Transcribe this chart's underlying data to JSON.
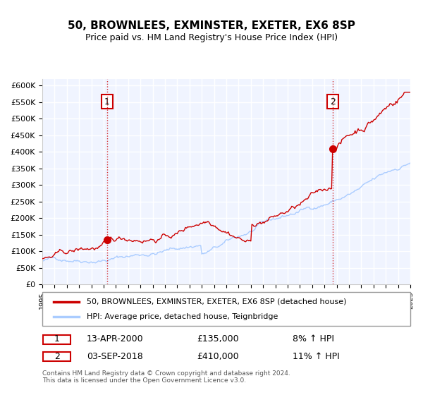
{
  "title": "50, BROWNLEES, EXMINSTER, EXETER, EX6 8SP",
  "subtitle": "Price paid vs. HM Land Registry's House Price Index (HPI)",
  "property_label": "50, BROWNLEES, EXMINSTER, EXETER, EX6 8SP (detached house)",
  "hpi_label": "HPI: Average price, detached house, Teignbridge",
  "property_color": "#cc0000",
  "hpi_color": "#aaccff",
  "marker1_date": 2000.28,
  "marker1_value": 135000,
  "marker1_label": "1",
  "marker1_text": "13-APR-2000",
  "marker1_price": "£135,000",
  "marker1_hpi": "8% ↑ HPI",
  "marker2_date": 2018.67,
  "marker2_value": 410000,
  "marker2_label": "2",
  "marker2_text": "03-SEP-2018",
  "marker2_price": "£410,000",
  "marker2_hpi": "11% ↑ HPI",
  "xmin": 1995,
  "xmax": 2025,
  "ymin": 0,
  "ymax": 620000,
  "yticks": [
    0,
    50000,
    100000,
    150000,
    200000,
    250000,
    300000,
    350000,
    400000,
    450000,
    500000,
    550000,
    600000
  ],
  "ylabel_format": "£{0}K",
  "background_color": "#f0f4ff",
  "plot_bg_color": "#f0f4ff",
  "grid_color": "#ffffff",
  "footer_text": "Contains HM Land Registry data © Crown copyright and database right 2024.\nThis data is licensed under the Open Government Licence v3.0."
}
